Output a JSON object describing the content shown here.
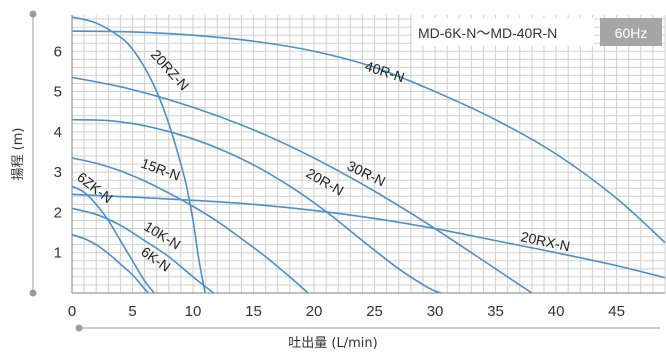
{
  "chart_data": {
    "type": "line",
    "title": "MD-6K-N～MD-40R-N",
    "badge": "60Hz",
    "badge_color": "#a6a6a6",
    "line_color": "#4a90cc",
    "xlabel": "吐出量 (L/min)",
    "ylabel": "揚程 (m)",
    "xlim": [
      0,
      49
    ],
    "ylim": [
      0,
      6.9
    ],
    "xticks": [
      "0",
      "5",
      "10",
      "15",
      "20",
      "25",
      "30",
      "35",
      "40",
      "45"
    ],
    "yticks": [
      "1",
      "2",
      "3",
      "4",
      "5",
      "6"
    ],
    "grid": true,
    "series": [
      {
        "name": "6K-N",
        "x": [
          0,
          1,
          2,
          3,
          4,
          5,
          6,
          6.3
        ],
        "y": [
          1.45,
          1.35,
          1.2,
          0.98,
          0.72,
          0.45,
          0.1,
          0
        ]
      },
      {
        "name": "6ZK-N",
        "x": [
          0,
          1,
          2,
          3,
          4,
          5,
          6,
          6.8
        ],
        "y": [
          2.65,
          2.5,
          2.2,
          1.8,
          1.3,
          0.8,
          0.3,
          0
        ]
      },
      {
        "name": "10K-N",
        "x": [
          0,
          2,
          4,
          6,
          8,
          10,
          11.7
        ],
        "y": [
          2.1,
          1.95,
          1.68,
          1.3,
          0.9,
          0.4,
          0
        ]
      },
      {
        "name": "15R-N",
        "x": [
          0,
          2,
          4,
          6,
          8,
          10,
          12,
          14,
          16,
          18,
          19.5
        ],
        "y": [
          3.35,
          3.22,
          3.03,
          2.78,
          2.48,
          2.15,
          1.78,
          1.35,
          0.9,
          0.4,
          0
        ]
      },
      {
        "name": "20RZ-N",
        "x": [
          0,
          2,
          4,
          5,
          6,
          7,
          8,
          9,
          9.5,
          10,
          10.5,
          11.0
        ],
        "y": [
          6.85,
          6.7,
          6.35,
          6.05,
          5.6,
          5.0,
          4.2,
          3.2,
          2.6,
          1.8,
          0.8,
          0
        ]
      },
      {
        "name": "20R-N",
        "x": [
          0,
          3,
          6,
          9,
          12,
          15,
          18,
          21,
          24,
          27,
          29.5,
          30.5
        ],
        "y": [
          4.3,
          4.28,
          4.15,
          3.92,
          3.6,
          3.18,
          2.65,
          2.02,
          1.3,
          0.6,
          0.12,
          0
        ]
      },
      {
        "name": "30R-N",
        "x": [
          0,
          4,
          8,
          12,
          16,
          20,
          24,
          28,
          32,
          36,
          38
        ],
        "y": [
          5.35,
          5.12,
          4.8,
          4.4,
          3.92,
          3.35,
          2.7,
          1.98,
          1.2,
          0.4,
          0
        ]
      },
      {
        "name": "40R-N",
        "x": [
          0,
          5,
          10,
          15,
          20,
          25,
          30,
          35,
          40,
          45,
          49
        ],
        "y": [
          6.5,
          6.48,
          6.4,
          6.25,
          6.0,
          5.6,
          5.0,
          4.3,
          3.45,
          2.35,
          1.25
        ]
      },
      {
        "name": "20RX-N",
        "x": [
          0,
          5,
          10,
          15,
          20,
          25,
          30,
          35,
          40,
          45,
          49
        ],
        "y": [
          2.45,
          2.38,
          2.3,
          2.2,
          2.05,
          1.85,
          1.6,
          1.3,
          1.0,
          0.68,
          0.38
        ]
      }
    ]
  }
}
